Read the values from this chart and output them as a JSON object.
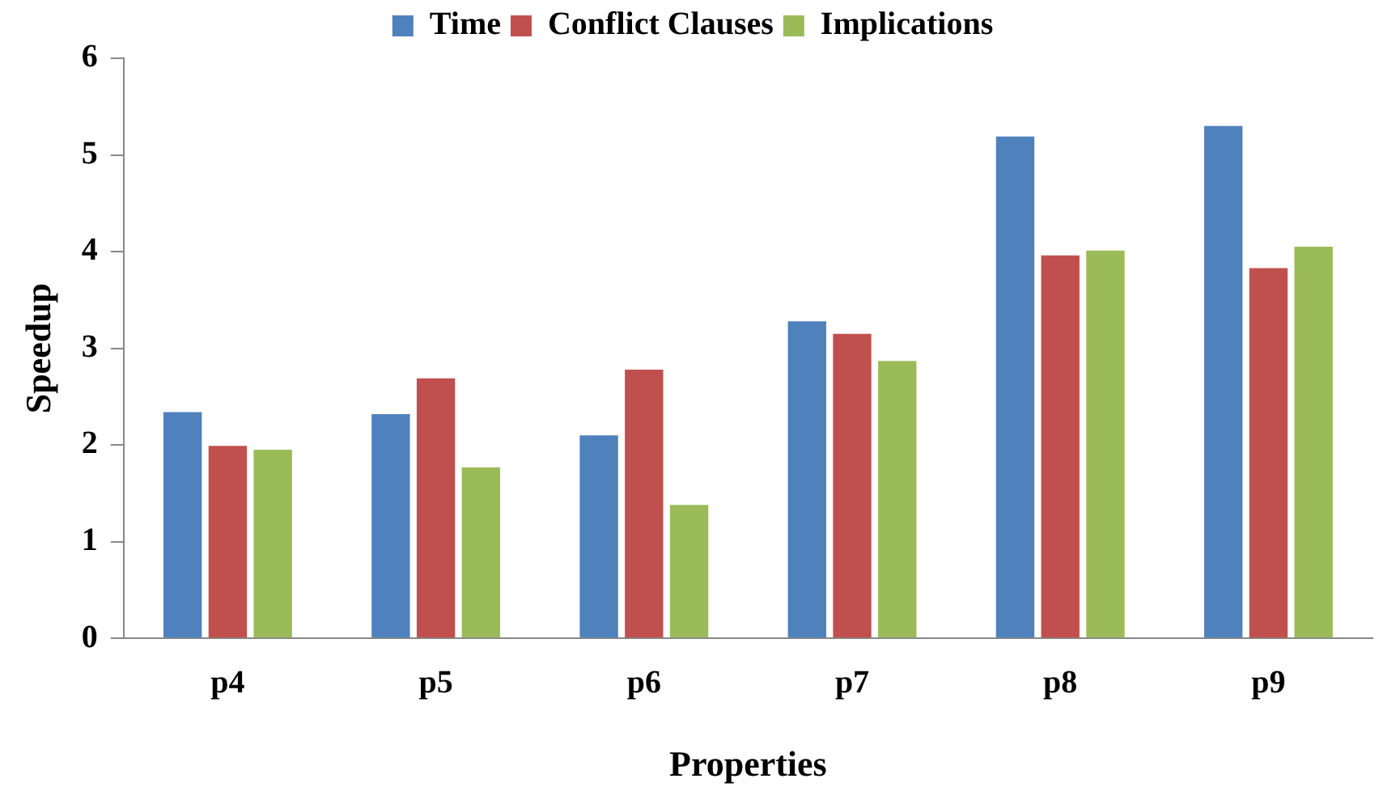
{
  "chart_data": {
    "type": "bar",
    "xlabel": "Properties",
    "ylabel": "Speedup",
    "categories": [
      "p4",
      "p5",
      "p6",
      "p7",
      "p8",
      "p9"
    ],
    "series": [
      {
        "name": "Time",
        "color": "#4f81bd",
        "values": [
          2.34,
          2.32,
          2.1,
          3.28,
          5.19,
          5.3
        ]
      },
      {
        "name": "Conflict Clauses",
        "color": "#c0504d",
        "values": [
          1.99,
          2.69,
          2.78,
          3.15,
          3.96,
          3.83
        ]
      },
      {
        "name": "Implications",
        "color": "#9bbb59",
        "values": [
          1.95,
          1.77,
          1.38,
          2.87,
          4.01,
          4.05
        ]
      }
    ],
    "ylim": [
      0,
      6
    ],
    "yticks": [
      0,
      1,
      2,
      3,
      4,
      5,
      6
    ],
    "grid": false,
    "legend": "top"
  }
}
